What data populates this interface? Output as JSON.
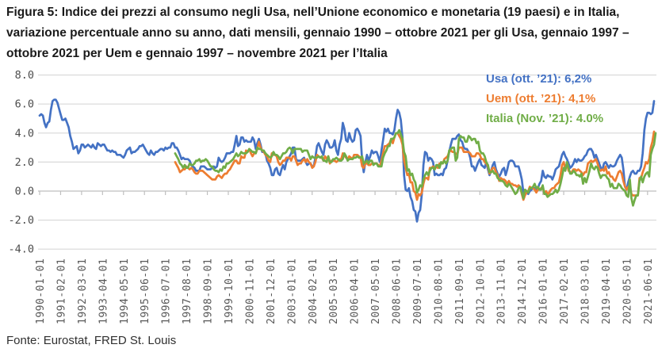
{
  "header": {
    "title_lines": [
      "Figura 5: Indice dei prezzi al consumo negli Usa, nell’Unione economico e monetaria (19 paesi) e in Italia,",
      "variazione percentuale anno su anno, dati mensili, gennaio 1990 – ottobre 2021 per gli Usa, gennaio 1997 –",
      "ottobre 2021 per Uem e gennaio 1997 – novembre 2021 per l’Italia"
    ]
  },
  "footer": {
    "text": "Fonte: Eurostat, FRED St. Louis"
  },
  "chart_data": {
    "type": "line",
    "title": "Figura 5: Indice dei prezzi al consumo negli Usa, nell’Unione economico e monetaria (19 paesi) e in Italia, variazione percentuale anno su anno, dati mensili, gennaio 1990 – ottobre 2021 per gli Usa, gennaio 1997 – ottobre 2021 per Uem e gennaio 1997 – novembre 2021 per l’Italia",
    "ylim": [
      -4.0,
      8.0
    ],
    "grid": true,
    "legend_position": "top-right",
    "ytick_labels": [
      "8.0",
      "6.0",
      "4.0",
      "2.0",
      "0.0",
      "-2.0",
      "-4.0"
    ],
    "yticks": [
      8,
      6,
      4,
      2,
      0,
      -2,
      -4
    ],
    "xtick_labels": [
      "1990-01-01",
      "1991-02-01",
      "1992-03-01",
      "1993-04-01",
      "1994-05-01",
      "1995-06-01",
      "1996-07-01",
      "1997-08-01",
      "1998-09-01",
      "1999-10-01",
      "2000-11-01",
      "2001-12-01",
      "2003-01-01",
      "2004-02-01",
      "2005-03-01",
      "2006-04-01",
      "2007-05-01",
      "2008-06-01",
      "2009-07-01",
      "2010-08-01",
      "2011-09-01",
      "2012-10-01",
      "2013-11-01",
      "2014-12-01",
      "2016-01-01",
      "2017-02-01",
      "2018-03-01",
      "2019-04-01",
      "2020-05-01",
      "2021-06-01"
    ],
    "x_domain": [
      "1990-01",
      "2021-11"
    ],
    "colors": {
      "grid": "#D9D9D9",
      "axis": "#BFBFBF",
      "tick_text": "#595959"
    },
    "legend": [
      {
        "label": "Usa (ott. ’21): 6,2%",
        "color": "#4472C4"
      },
      {
        "label": "Uem (ott. ’21): 4,1%",
        "color": "#ED7D31"
      },
      {
        "label": "Italia (Nov. ’21): 4.0%",
        "color": "#70AD47"
      }
    ],
    "series": [
      {
        "name": "Usa",
        "color": "#4472C4",
        "start": "1990-01",
        "end": "2021-10",
        "values": [
          5.2,
          5.3,
          5.2,
          4.7,
          4.4,
          4.7,
          4.8,
          5.6,
          6.2,
          6.3,
          6.3,
          6.1,
          5.7,
          5.3,
          4.9,
          4.9,
          5.0,
          4.7,
          4.4,
          3.8,
          3.4,
          2.9,
          3.0,
          3.1,
          2.6,
          2.8,
          3.2,
          3.2,
          3.0,
          3.1,
          3.2,
          3.1,
          3.0,
          3.2,
          3.0,
          2.9,
          3.3,
          3.2,
          3.1,
          3.2,
          3.2,
          3.0,
          2.8,
          2.8,
          2.7,
          2.8,
          2.7,
          2.7,
          2.5,
          2.5,
          2.5,
          2.4,
          2.3,
          2.5,
          2.8,
          2.9,
          3.0,
          2.6,
          2.7,
          2.7,
          2.8,
          2.9,
          3.1,
          3.1,
          3.2,
          3.0,
          2.8,
          2.6,
          2.5,
          2.8,
          2.6,
          2.5,
          2.7,
          2.7,
          2.8,
          2.9,
          2.9,
          2.8,
          3.0,
          2.9,
          3.0,
          3.0,
          3.3,
          3.3,
          3.0,
          3.0,
          2.8,
          2.5,
          2.2,
          2.3,
          2.2,
          2.2,
          2.2,
          2.1,
          1.8,
          1.7,
          1.6,
          1.4,
          1.4,
          1.4,
          1.7,
          1.7,
          1.7,
          1.6,
          1.5,
          1.5,
          1.5,
          1.6,
          1.7,
          1.6,
          1.7,
          2.3,
          2.1,
          2.0,
          2.1,
          2.3,
          2.6,
          2.6,
          2.6,
          2.7,
          2.7,
          3.2,
          3.8,
          3.1,
          3.2,
          3.7,
          3.7,
          3.4,
          3.5,
          3.4,
          3.4,
          3.4,
          3.7,
          3.5,
          2.9,
          3.3,
          3.6,
          3.2,
          2.7,
          2.7,
          2.6,
          2.1,
          1.9,
          1.6,
          1.1,
          1.1,
          1.5,
          1.6,
          1.2,
          1.1,
          1.5,
          1.8,
          1.5,
          2.0,
          2.2,
          2.4,
          2.6,
          3.0,
          3.0,
          2.2,
          2.1,
          2.1,
          2.1,
          2.2,
          2.3,
          2.0,
          1.8,
          1.9,
          1.9,
          1.7,
          1.7,
          2.3,
          3.1,
          3.3,
          3.0,
          2.7,
          2.5,
          3.2,
          3.5,
          3.3,
          3.0,
          3.0,
          3.1,
          3.5,
          2.8,
          2.5,
          3.2,
          3.6,
          4.7,
          4.3,
          3.5,
          3.4,
          4.0,
          3.6,
          3.4,
          3.5,
          4.2,
          4.3,
          4.1,
          3.8,
          2.1,
          1.3,
          2.0,
          2.5,
          2.1,
          2.4,
          2.8,
          2.6,
          2.7,
          2.7,
          2.4,
          2.0,
          2.8,
          3.5,
          4.3,
          4.1,
          4.3,
          4.0,
          4.0,
          3.9,
          4.2,
          5.0,
          5.6,
          5.4,
          4.9,
          3.7,
          1.1,
          0.1,
          0.0,
          0.2,
          -0.4,
          -0.7,
          -1.3,
          -1.4,
          -2.1,
          -1.5,
          -1.3,
          -0.2,
          1.8,
          2.7,
          2.6,
          2.1,
          2.3,
          2.2,
          2.0,
          1.1,
          1.2,
          1.1,
          1.1,
          1.2,
          1.1,
          1.5,
          1.6,
          2.1,
          2.7,
          3.2,
          3.6,
          3.6,
          3.6,
          3.8,
          3.9,
          3.5,
          3.4,
          3.0,
          2.9,
          2.9,
          2.7,
          2.3,
          1.7,
          1.7,
          1.4,
          1.7,
          2.0,
          2.2,
          1.8,
          1.7,
          1.6,
          2.0,
          1.5,
          1.1,
          1.4,
          1.8,
          2.0,
          1.5,
          1.2,
          1.0,
          1.2,
          1.5,
          1.6,
          1.1,
          1.5,
          2.0,
          2.1,
          2.1,
          2.0,
          1.7,
          1.7,
          1.7,
          1.3,
          0.8,
          -0.1,
          0.0,
          -0.1,
          -0.2,
          0.0,
          0.1,
          0.2,
          0.2,
          0.0,
          0.2,
          0.5,
          0.7,
          1.4,
          1.0,
          0.9,
          1.1,
          1.0,
          1.0,
          0.8,
          1.1,
          1.5,
          1.6,
          1.7,
          2.1,
          2.5,
          2.7,
          2.4,
          2.2,
          1.9,
          1.6,
          1.7,
          1.9,
          2.2,
          2.0,
          2.2,
          2.1,
          2.1,
          2.2,
          2.4,
          2.5,
          2.8,
          2.9,
          2.9,
          2.7,
          2.3,
          2.5,
          2.2,
          1.9,
          1.6,
          1.5,
          1.9,
          2.0,
          1.8,
          1.6,
          1.8,
          1.7,
          1.7,
          1.8,
          2.1,
          2.3,
          2.5,
          2.3,
          1.5,
          0.3,
          0.1,
          0.6,
          1.0,
          1.3,
          1.4,
          1.2,
          1.2,
          1.4,
          1.4,
          1.7,
          2.6,
          4.2,
          5.0,
          5.4,
          5.4,
          5.3,
          5.4,
          6.2
        ]
      },
      {
        "name": "Uem",
        "color": "#ED7D31",
        "start": "1997-01",
        "end": "2021-10",
        "values": [
          2.0,
          1.8,
          1.6,
          1.3,
          1.4,
          1.5,
          1.5,
          1.7,
          1.6,
          1.5,
          1.6,
          1.5,
          1.3,
          1.2,
          1.2,
          1.4,
          1.4,
          1.4,
          1.3,
          1.2,
          1.1,
          1.0,
          0.9,
          0.8,
          0.8,
          0.8,
          1.0,
          1.1,
          1.0,
          0.9,
          1.1,
          1.2,
          1.2,
          1.4,
          1.5,
          1.7,
          1.9,
          2.1,
          2.1,
          1.9,
          1.9,
          2.4,
          2.3,
          2.3,
          2.8,
          2.7,
          2.9,
          2.6,
          2.4,
          2.6,
          2.6,
          2.9,
          3.4,
          3.0,
          2.8,
          2.7,
          2.5,
          2.4,
          2.1,
          2.0,
          2.6,
          2.5,
          2.5,
          2.4,
          2.0,
          1.8,
          1.9,
          2.1,
          2.1,
          2.3,
          2.3,
          2.3,
          2.1,
          2.4,
          2.4,
          2.1,
          1.8,
          1.9,
          1.9,
          2.1,
          2.2,
          2.0,
          2.2,
          2.0,
          1.9,
          1.6,
          1.7,
          2.0,
          2.5,
          2.4,
          2.3,
          2.3,
          2.1,
          2.4,
          2.2,
          2.4,
          1.9,
          2.1,
          2.1,
          2.1,
          2.0,
          2.1,
          2.2,
          2.2,
          2.6,
          2.5,
          2.3,
          2.2,
          2.4,
          2.3,
          2.2,
          2.5,
          2.5,
          2.5,
          2.4,
          2.3,
          1.7,
          1.6,
          1.9,
          1.9,
          1.8,
          1.8,
          1.9,
          1.9,
          1.9,
          1.9,
          1.8,
          1.7,
          2.1,
          2.6,
          3.1,
          3.1,
          3.2,
          3.3,
          3.6,
          3.3,
          3.7,
          4.0,
          4.0,
          3.8,
          3.6,
          3.2,
          2.1,
          1.6,
          1.1,
          1.2,
          0.6,
          0.6,
          0.0,
          -0.1,
          -0.6,
          -0.2,
          -0.3,
          -0.1,
          0.5,
          0.9,
          0.9,
          0.8,
          1.6,
          1.6,
          1.7,
          1.5,
          1.7,
          1.6,
          1.9,
          1.9,
          1.9,
          2.2,
          2.3,
          2.4,
          2.7,
          2.8,
          2.7,
          2.7,
          2.6,
          2.5,
          3.0,
          3.0,
          3.0,
          2.7,
          2.7,
          2.7,
          2.7,
          2.6,
          2.4,
          2.4,
          2.4,
          2.6,
          2.6,
          2.5,
          2.2,
          2.2,
          2.0,
          1.9,
          1.7,
          1.2,
          1.4,
          1.6,
          1.6,
          1.3,
          1.1,
          0.7,
          0.9,
          0.8,
          0.8,
          0.7,
          0.5,
          0.7,
          0.5,
          0.5,
          0.4,
          0.4,
          0.3,
          0.4,
          0.3,
          -0.2,
          -0.6,
          -0.3,
          -0.1,
          0.0,
          0.3,
          0.2,
          0.2,
          0.1,
          -0.1,
          0.1,
          0.1,
          0.2,
          0.3,
          -0.2,
          0.0,
          -0.2,
          -0.1,
          0.1,
          0.2,
          0.2,
          0.4,
          0.5,
          0.6,
          1.1,
          1.8,
          2.0,
          1.5,
          1.9,
          1.4,
          1.3,
          1.3,
          1.5,
          1.5,
          1.4,
          1.5,
          1.4,
          1.3,
          1.1,
          1.3,
          1.3,
          1.9,
          2.0,
          2.1,
          2.0,
          2.1,
          2.2,
          1.9,
          1.5,
          1.4,
          1.5,
          1.4,
          1.7,
          1.2,
          1.3,
          1.0,
          1.0,
          0.8,
          0.7,
          1.0,
          1.3,
          1.4,
          1.2,
          0.7,
          0.3,
          0.1,
          0.3,
          0.4,
          -0.2,
          -0.3,
          -0.3,
          -0.3,
          -0.3,
          0.9,
          0.9,
          1.3,
          1.6,
          2.0,
          1.9,
          2.2,
          3.0,
          3.4,
          4.1
        ]
      },
      {
        "name": "Italia",
        "color": "#70AD47",
        "start": "1997-01",
        "end": "2021-11",
        "values": [
          2.6,
          2.4,
          2.2,
          1.9,
          1.8,
          1.6,
          1.8,
          1.6,
          1.6,
          1.9,
          1.8,
          1.8,
          1.9,
          2.1,
          2.1,
          2.2,
          2.0,
          2.1,
          2.1,
          2.2,
          2.1,
          1.9,
          1.7,
          1.7,
          1.5,
          1.4,
          1.4,
          1.3,
          1.5,
          1.4,
          1.7,
          1.6,
          1.9,
          1.9,
          2.0,
          2.1,
          2.2,
          2.4,
          2.6,
          2.4,
          2.5,
          2.7,
          2.6,
          2.6,
          2.6,
          2.7,
          2.9,
          2.8,
          2.7,
          2.7,
          2.6,
          3.0,
          2.9,
          2.9,
          2.8,
          2.8,
          2.6,
          2.5,
          2.4,
          2.3,
          2.4,
          2.7,
          2.5,
          2.5,
          2.4,
          2.2,
          2.4,
          2.6,
          2.6,
          2.7,
          2.9,
          3.0,
          2.9,
          2.6,
          2.9,
          2.9,
          2.9,
          2.9,
          2.9,
          2.7,
          2.8,
          2.8,
          2.8,
          2.5,
          2.2,
          2.4,
          2.3,
          2.3,
          2.3,
          2.4,
          2.3,
          2.4,
          2.1,
          2.1,
          2.0,
          2.4,
          2.0,
          2.0,
          2.2,
          2.2,
          2.3,
          2.2,
          2.1,
          2.1,
          2.2,
          2.6,
          2.4,
          2.1,
          2.2,
          2.2,
          2.2,
          2.3,
          2.3,
          2.4,
          2.3,
          2.3,
          2.4,
          1.9,
          2.0,
          2.1,
          1.9,
          2.1,
          2.1,
          1.8,
          1.9,
          1.9,
          1.7,
          1.7,
          1.7,
          2.3,
          2.6,
          2.8,
          3.1,
          3.1,
          3.6,
          3.6,
          3.7,
          4.0,
          4.0,
          4.2,
          3.9,
          3.6,
          2.7,
          2.4,
          1.4,
          1.5,
          1.1,
          1.2,
          0.8,
          0.6,
          -0.1,
          0.1,
          0.4,
          0.3,
          0.8,
          1.1,
          1.3,
          1.1,
          1.4,
          1.6,
          1.6,
          1.5,
          1.8,
          1.8,
          1.6,
          2.0,
          1.9,
          2.1,
          1.9,
          2.1,
          2.8,
          2.9,
          3.0,
          3.0,
          2.1,
          2.3,
          3.6,
          3.8,
          3.7,
          3.7,
          3.4,
          3.4,
          3.8,
          3.7,
          3.5,
          3.6,
          3.6,
          3.3,
          3.4,
          2.8,
          2.6,
          2.6,
          2.4,
          2.0,
          1.8,
          1.3,
          1.3,
          1.4,
          1.2,
          1.2,
          0.9,
          0.8,
          0.7,
          0.7,
          0.6,
          0.4,
          0.3,
          0.5,
          0.4,
          0.2,
          0.0,
          -0.2,
          -0.1,
          0.2,
          0.3,
          -0.1,
          -0.5,
          0.1,
          0.0,
          -0.1,
          0.2,
          0.2,
          0.3,
          0.5,
          0.2,
          0.3,
          0.1,
          0.1,
          0.4,
          -0.2,
          -0.2,
          -0.4,
          -0.3,
          -0.2,
          -0.2,
          -0.1,
          0.1,
          -0.1,
          0.1,
          0.5,
          1.0,
          1.6,
          1.4,
          2.0,
          1.6,
          1.2,
          1.2,
          1.4,
          1.3,
          1.1,
          1.1,
          1.0,
          1.2,
          0.5,
          0.9,
          0.6,
          1.0,
          1.4,
          1.9,
          1.6,
          1.5,
          1.7,
          1.6,
          1.2,
          0.9,
          1.1,
          1.1,
          1.1,
          0.9,
          0.8,
          0.3,
          0.5,
          0.2,
          0.2,
          0.2,
          0.5,
          0.4,
          0.2,
          0.1,
          0.0,
          -0.3,
          -0.4,
          0.8,
          -0.5,
          -1.0,
          -0.6,
          -0.3,
          -0.3,
          0.7,
          1.0,
          0.6,
          1.0,
          1.2,
          1.3,
          1.0,
          2.5,
          2.9,
          3.2,
          4.0
        ]
      }
    ]
  }
}
